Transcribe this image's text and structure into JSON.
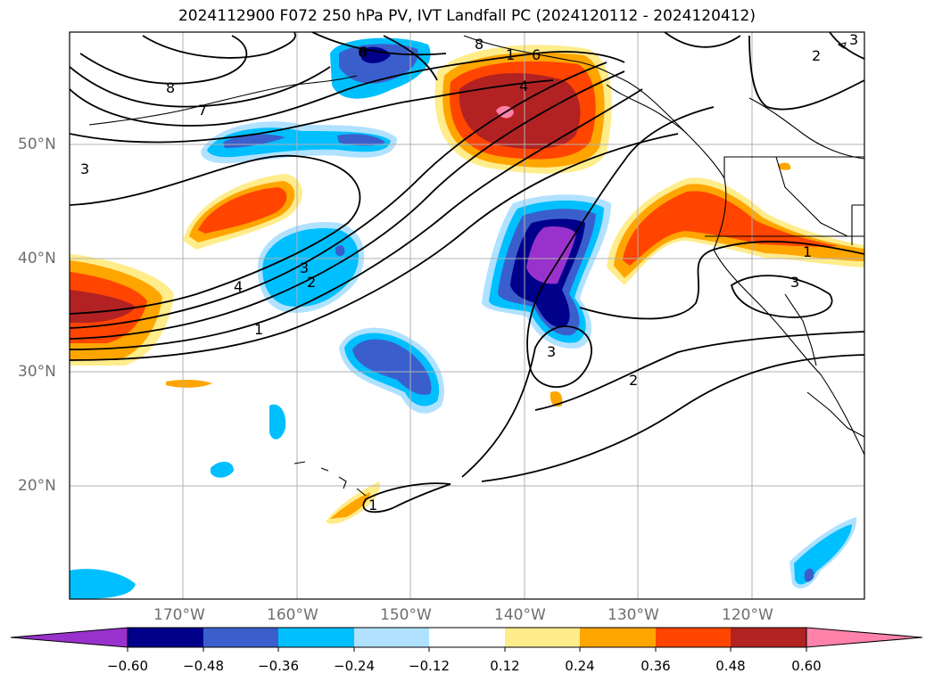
{
  "title": "2024112900 F072 250 hPa PV, IVT Landfall PC (2024120112 - 2024120412)",
  "lat_ticks": [
    "50°N",
    "40°N",
    "30°N",
    "20°N"
  ],
  "lon_ticks": [
    "170°W",
    "160°W",
    "150°W",
    "140°W",
    "130°W",
    "120°W"
  ],
  "colorbar": {
    "labels": [
      "−0.60",
      "−0.48",
      "−0.36",
      "−0.24",
      "−0.12",
      "0.12",
      "0.24",
      "0.36",
      "0.48",
      "0.60"
    ],
    "colors": [
      "#9932cc",
      "#00008b",
      "#3a5fcd",
      "#00bfff",
      "#b0e2ff",
      "#ffffff",
      "#ffec8b",
      "#ffa500",
      "#ff4500",
      "#b22222",
      "#ff82ab"
    ]
  },
  "contour_labels": [
    "8",
    "7",
    "6",
    "1",
    "6",
    "4",
    "2",
    "3",
    "4",
    "3",
    "2",
    "1",
    "3",
    "2",
    "1",
    "3",
    "1",
    "3",
    "6",
    "8"
  ],
  "colors": {
    "coast": "#000000",
    "grid": "#b0b0b0",
    "contour": "#000000"
  }
}
